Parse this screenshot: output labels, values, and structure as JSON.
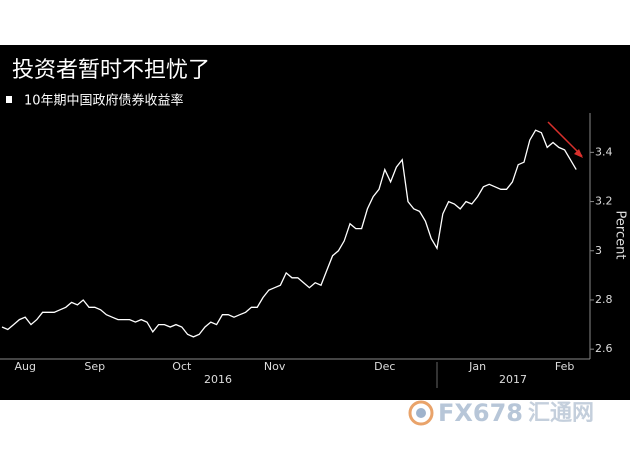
{
  "chart_data": {
    "type": "line",
    "title": "投资者暂时不担忧了",
    "y_label": "Percent",
    "categories": [
      null,
      null,
      null,
      null,
      "Aug",
      null,
      null,
      null,
      null,
      null,
      null,
      null,
      null,
      null,
      null,
      null,
      "Sep",
      null,
      null,
      null,
      null,
      null,
      null,
      null,
      null,
      null,
      null,
      null,
      null,
      null,
      null,
      "Oct",
      null,
      null,
      null,
      null,
      null,
      null,
      null,
      null,
      null,
      null,
      null,
      null,
      null,
      null,
      null,
      "Nov",
      null,
      null,
      null,
      null,
      null,
      null,
      null,
      null,
      null,
      null,
      null,
      null,
      null,
      null,
      null,
      null,
      null,
      null,
      "Dec",
      null,
      null,
      null,
      null,
      null,
      null,
      null,
      null,
      null,
      null,
      null,
      null,
      null,
      null,
      null,
      "Jan",
      null,
      null,
      null,
      null,
      null,
      null,
      null,
      null,
      null,
      null,
      null,
      null,
      null,
      null,
      "Feb",
      null,
      null
    ],
    "years": [
      "2016",
      "2017"
    ],
    "series": [
      {
        "name": "10年期中国政府债券收益率",
        "color": "#ffffff",
        "values": [
          2.69,
          2.68,
          2.7,
          2.72,
          2.73,
          2.7,
          2.72,
          2.75,
          2.75,
          2.75,
          2.76,
          2.77,
          2.79,
          2.78,
          2.8,
          2.77,
          2.77,
          2.76,
          2.74,
          2.73,
          2.72,
          2.72,
          2.72,
          2.71,
          2.72,
          2.71,
          2.67,
          2.7,
          2.7,
          2.69,
          2.7,
          2.69,
          2.66,
          2.65,
          2.66,
          2.69,
          2.71,
          2.7,
          2.74,
          2.74,
          2.73,
          2.74,
          2.75,
          2.77,
          2.77,
          2.81,
          2.84,
          2.85,
          2.86,
          2.91,
          2.89,
          2.89,
          2.87,
          2.85,
          2.87,
          2.86,
          2.92,
          2.98,
          3.0,
          3.04,
          3.11,
          3.09,
          3.09,
          3.17,
          3.22,
          3.25,
          3.33,
          3.28,
          3.34,
          3.37,
          3.2,
          3.17,
          3.16,
          3.12,
          3.05,
          3.01,
          3.15,
          3.2,
          3.19,
          3.17,
          3.2,
          3.19,
          3.22,
          3.26,
          3.27,
          3.26,
          3.25,
          3.25,
          3.28,
          3.35,
          3.36,
          3.45,
          3.49,
          3.48,
          3.42,
          3.44,
          3.42,
          3.41,
          3.37,
          3.33
        ]
      }
    ],
    "ylim": [
      2.56,
      3.56
    ],
    "yticks": [
      2.6,
      2.8,
      3.0,
      3.2,
      3.4
    ],
    "watermark": "FX678",
    "watermark_cn": "汇通网"
  }
}
